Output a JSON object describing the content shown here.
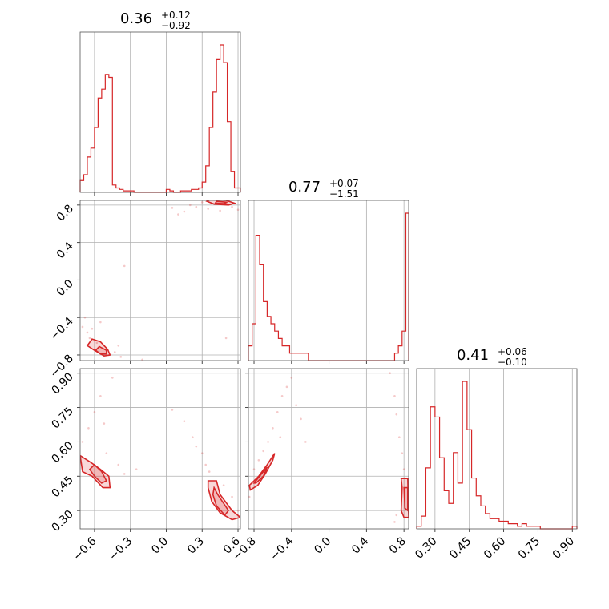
{
  "chart_data": {
    "type": "corner",
    "color": "#d62728",
    "parameters": [
      {
        "title": {
          "median": "0.36",
          "plus": "+0.12",
          "minus": "−0.92"
        },
        "range": [
          -0.72,
          0.62
        ],
        "ticks": [
          {
            "value": -0.6,
            "label": "−0.6"
          },
          {
            "value": -0.3,
            "label": "−0.3"
          },
          {
            "value": 0.0,
            "label": "0.0"
          },
          {
            "value": 0.3,
            "label": "0.3"
          },
          {
            "value": 0.6,
            "label": "0.6"
          }
        ],
        "hist_x": [
          -0.72,
          -0.69,
          -0.66,
          -0.63,
          -0.6,
          -0.57,
          -0.54,
          -0.51,
          -0.48,
          -0.45,
          -0.42,
          -0.39,
          -0.36,
          -0.33,
          -0.3,
          -0.27,
          -0.24,
          -0.21,
          -0.18,
          -0.15,
          -0.12,
          -0.09,
          -0.06,
          -0.03,
          0.0,
          0.03,
          0.06,
          0.09,
          0.12,
          0.15,
          0.18,
          0.21,
          0.24,
          0.27,
          0.3,
          0.33,
          0.36,
          0.39,
          0.42,
          0.45,
          0.48,
          0.51,
          0.54,
          0.57,
          0.6
        ],
        "hist_y": [
          0.08,
          0.12,
          0.24,
          0.3,
          0.44,
          0.64,
          0.7,
          0.8,
          0.78,
          0.05,
          0.03,
          0.02,
          0.01,
          0.01,
          0.01,
          0.0,
          0.0,
          0.0,
          0.0,
          0.0,
          0.0,
          0.0,
          0.0,
          0.0,
          0.02,
          0.01,
          0.0,
          0.0,
          0.01,
          0.01,
          0.01,
          0.02,
          0.02,
          0.03,
          0.07,
          0.18,
          0.44,
          0.68,
          0.9,
          1.0,
          0.88,
          0.48,
          0.14,
          0.03,
          0.03
        ]
      },
      {
        "title": {
          "median": "0.77",
          "plus": "+0.07",
          "minus": "−1.51"
        },
        "range": [
          -0.86,
          0.85
        ],
        "ticks": [
          {
            "value": -0.8,
            "label": "−0.8"
          },
          {
            "value": -0.4,
            "label": "−0.4"
          },
          {
            "value": 0.0,
            "label": "0.0"
          },
          {
            "value": 0.4,
            "label": "0.4"
          },
          {
            "value": 0.8,
            "label": "0.8"
          }
        ],
        "hist_x": [
          -0.86,
          -0.82,
          -0.78,
          -0.74,
          -0.7,
          -0.66,
          -0.62,
          -0.58,
          -0.54,
          -0.5,
          -0.46,
          -0.42,
          -0.38,
          -0.34,
          -0.3,
          -0.26,
          -0.22,
          -0.18,
          -0.14,
          -0.1,
          -0.06,
          -0.02,
          0.02,
          0.06,
          0.1,
          0.14,
          0.18,
          0.22,
          0.26,
          0.3,
          0.34,
          0.38,
          0.42,
          0.46,
          0.5,
          0.54,
          0.58,
          0.62,
          0.66,
          0.7,
          0.74,
          0.78,
          0.82
        ],
        "hist_y": [
          0.02,
          0.05,
          0.17,
          0.13,
          0.08,
          0.06,
          0.05,
          0.04,
          0.03,
          0.02,
          0.02,
          0.01,
          0.01,
          0.01,
          0.01,
          0.01,
          0.0,
          0.0,
          0.0,
          0.0,
          0.0,
          0.0,
          0.0,
          0.0,
          0.0,
          0.0,
          0.0,
          0.0,
          0.0,
          0.0,
          0.0,
          0.0,
          0.0,
          0.0,
          0.0,
          0.0,
          0.0,
          0.0,
          0.0,
          0.01,
          0.02,
          0.04,
          0.2
        ]
      },
      {
        "title": {
          "median": "0.41",
          "plus": "+0.06",
          "minus": "−0.10"
        },
        "range": [
          0.22,
          0.92
        ],
        "ticks": [
          {
            "value": 0.3,
            "label": "0.30"
          },
          {
            "value": 0.45,
            "label": "0.45"
          },
          {
            "value": 0.6,
            "label": "0.60"
          },
          {
            "value": 0.75,
            "label": "0.75"
          },
          {
            "value": 0.9,
            "label": "0.90"
          }
        ],
        "hist_x": [
          0.22,
          0.24,
          0.26,
          0.28,
          0.3,
          0.32,
          0.34,
          0.36,
          0.38,
          0.4,
          0.42,
          0.44,
          0.46,
          0.48,
          0.5,
          0.52,
          0.54,
          0.56,
          0.58,
          0.6,
          0.62,
          0.64,
          0.66,
          0.68,
          0.7,
          0.72,
          0.74,
          0.76,
          0.78,
          0.8,
          0.82,
          0.84,
          0.86,
          0.88,
          0.9
        ],
        "hist_y": [
          0.01,
          0.05,
          0.24,
          0.48,
          0.44,
          0.28,
          0.15,
          0.1,
          0.3,
          0.18,
          0.58,
          0.39,
          0.2,
          0.13,
          0.09,
          0.06,
          0.04,
          0.04,
          0.03,
          0.03,
          0.02,
          0.02,
          0.01,
          0.02,
          0.01,
          0.01,
          0.01,
          0.0,
          0.0,
          0.0,
          0.0,
          0.0,
          0.0,
          0.0,
          0.01
        ]
      }
    ],
    "pairs": [
      {
        "x_param": 0,
        "y_param": 1,
        "contours": [
          [
            [
              -0.62,
              -0.63
            ],
            [
              -0.55,
              -0.66
            ],
            [
              -0.49,
              -0.74
            ],
            [
              -0.47,
              -0.8
            ],
            [
              -0.52,
              -0.81
            ],
            [
              -0.6,
              -0.75
            ],
            [
              -0.66,
              -0.7
            ]
          ],
          [
            [
              -0.56,
              -0.71
            ],
            [
              -0.5,
              -0.75
            ],
            [
              -0.5,
              -0.79
            ],
            [
              -0.55,
              -0.79
            ],
            [
              -0.59,
              -0.75
            ]
          ],
          [
            [
              0.37,
              0.86
            ],
            [
              0.5,
              0.85
            ],
            [
              0.57,
              0.82
            ],
            [
              0.52,
              0.8
            ],
            [
              0.4,
              0.81
            ],
            [
              0.34,
              0.84
            ]
          ],
          [
            [
              0.42,
              0.84
            ],
            [
              0.51,
              0.83
            ],
            [
              0.48,
              0.815
            ],
            [
              0.41,
              0.82
            ]
          ]
        ],
        "points": [
          [
            -0.7,
            -0.5
          ],
          [
            -0.68,
            -0.4
          ],
          [
            -0.66,
            -0.56
          ],
          [
            -0.64,
            -0.62
          ],
          [
            -0.62,
            -0.52
          ],
          [
            -0.58,
            -0.67
          ],
          [
            -0.55,
            -0.45
          ],
          [
            -0.52,
            -0.7
          ],
          [
            -0.48,
            -0.8
          ],
          [
            -0.43,
            -0.77
          ],
          [
            -0.4,
            -0.7
          ],
          [
            -0.38,
            -0.82
          ],
          [
            -0.35,
            0.15
          ],
          [
            -0.2,
            -0.85
          ],
          [
            0.05,
            0.77
          ],
          [
            0.1,
            0.7
          ],
          [
            0.15,
            0.73
          ],
          [
            0.2,
            0.8
          ],
          [
            0.25,
            0.78
          ],
          [
            0.3,
            0.83
          ],
          [
            0.35,
            0.76
          ],
          [
            0.45,
            0.74
          ],
          [
            0.5,
            -0.62
          ],
          [
            0.55,
            0.78
          ],
          [
            0.6,
            0.75
          ]
        ]
      },
      {
        "x_param": 0,
        "y_param": 2,
        "contours": [
          [
            [
              -0.72,
              0.54
            ],
            [
              -0.63,
              0.51
            ],
            [
              -0.55,
              0.48
            ],
            [
              -0.48,
              0.45
            ],
            [
              -0.47,
              0.4
            ],
            [
              -0.53,
              0.4
            ],
            [
              -0.62,
              0.45
            ],
            [
              -0.7,
              0.47
            ]
          ],
          [
            [
              -0.6,
              0.5
            ],
            [
              -0.54,
              0.47
            ],
            [
              -0.5,
              0.43
            ],
            [
              -0.54,
              0.42
            ],
            [
              -0.6,
              0.45
            ],
            [
              -0.64,
              0.48
            ]
          ],
          [
            [
              0.35,
              0.43
            ],
            [
              0.42,
              0.43
            ],
            [
              0.45,
              0.37
            ],
            [
              0.55,
              0.3
            ],
            [
              0.62,
              0.27
            ],
            [
              0.55,
              0.26
            ],
            [
              0.45,
              0.29
            ],
            [
              0.38,
              0.34
            ],
            [
              0.35,
              0.4
            ]
          ],
          [
            [
              0.4,
              0.4
            ],
            [
              0.43,
              0.37
            ],
            [
              0.52,
              0.3
            ],
            [
              0.49,
              0.28
            ],
            [
              0.42,
              0.32
            ],
            [
              0.39,
              0.37
            ]
          ]
        ],
        "points": [
          [
            -0.7,
            0.6
          ],
          [
            -0.65,
            0.66
          ],
          [
            -0.6,
            0.73
          ],
          [
            -0.55,
            0.8
          ],
          [
            -0.52,
            0.68
          ],
          [
            -0.5,
            0.55
          ],
          [
            -0.45,
            0.88
          ],
          [
            -0.4,
            0.5
          ],
          [
            -0.35,
            0.46
          ],
          [
            -0.25,
            0.48
          ],
          [
            0.05,
            0.74
          ],
          [
            0.15,
            0.69
          ],
          [
            0.22,
            0.62
          ],
          [
            0.25,
            0.58
          ],
          [
            0.3,
            0.55
          ],
          [
            0.33,
            0.5
          ],
          [
            0.36,
            0.47
          ],
          [
            0.48,
            0.41
          ],
          [
            0.55,
            0.36
          ],
          [
            0.6,
            0.3
          ],
          [
            0.62,
            0.23
          ]
        ]
      },
      {
        "x_param": 1,
        "y_param": 2,
        "contours": [
          [
            [
              -0.85,
              0.41
            ],
            [
              -0.75,
              0.45
            ],
            [
              -0.66,
              0.5
            ],
            [
              -0.58,
              0.55
            ],
            [
              -0.6,
              0.52
            ],
            [
              -0.68,
              0.46
            ],
            [
              -0.76,
              0.41
            ],
            [
              -0.84,
              0.39
            ]
          ],
          [
            [
              -0.8,
              0.42
            ],
            [
              -0.72,
              0.46
            ],
            [
              -0.66,
              0.49
            ],
            [
              -0.7,
              0.45
            ],
            [
              -0.78,
              0.42
            ]
          ],
          [
            [
              0.77,
              0.44
            ],
            [
              0.84,
              0.44
            ],
            [
              0.85,
              0.27
            ],
            [
              0.8,
              0.27
            ],
            [
              0.77,
              0.3
            ],
            [
              0.78,
              0.4
            ]
          ],
          [
            [
              0.8,
              0.4
            ],
            [
              0.84,
              0.4
            ],
            [
              0.84,
              0.3
            ],
            [
              0.81,
              0.31
            ]
          ]
        ],
        "points": [
          [
            -0.85,
            0.36
          ],
          [
            -0.8,
            0.48
          ],
          [
            -0.75,
            0.52
          ],
          [
            -0.7,
            0.56
          ],
          [
            -0.65,
            0.6
          ],
          [
            -0.6,
            0.66
          ],
          [
            -0.55,
            0.73
          ],
          [
            -0.52,
            0.62
          ],
          [
            -0.5,
            0.8
          ],
          [
            -0.45,
            0.84
          ],
          [
            -0.4,
            0.88
          ],
          [
            -0.35,
            0.76
          ],
          [
            -0.3,
            0.7
          ],
          [
            -0.25,
            0.6
          ],
          [
            0.65,
            0.9
          ],
          [
            0.7,
            0.8
          ],
          [
            0.72,
            0.72
          ],
          [
            0.75,
            0.62
          ],
          [
            0.78,
            0.55
          ],
          [
            0.8,
            0.48
          ],
          [
            0.72,
            0.28
          ],
          [
            0.7,
            0.25
          ]
        ]
      }
    ]
  }
}
